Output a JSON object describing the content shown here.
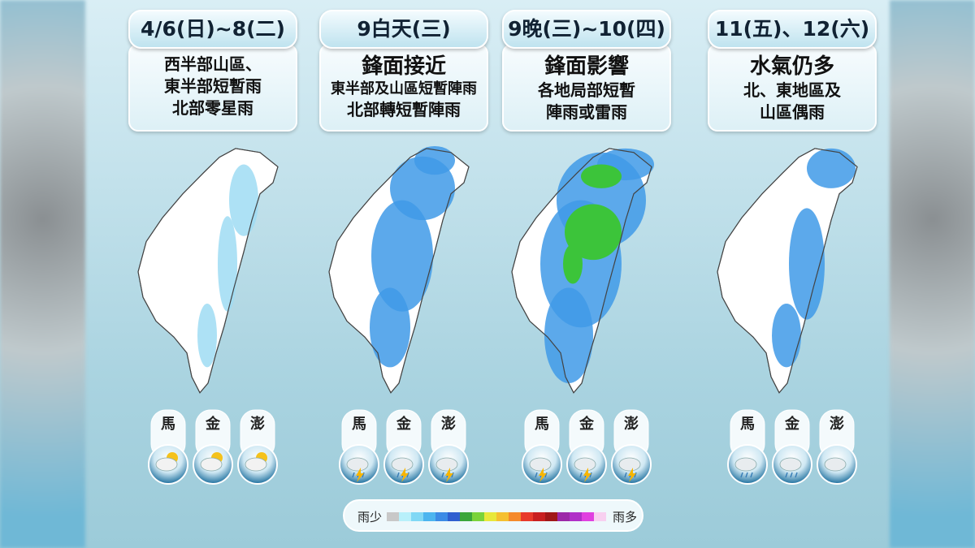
{
  "panels": [
    {
      "date": "4/6(日)~8(二)",
      "lines": [
        "西半部山區、",
        "東半部短暫雨",
        "北部零星雨"
      ],
      "islands": [
        "馬",
        "金",
        "澎"
      ]
    },
    {
      "date": "9白天(三)",
      "headline": "鋒面接近",
      "lines": [
        "東半部及山區短暫陣雨",
        "北部轉短暫陣雨"
      ],
      "islands": [
        "馬",
        "金",
        "澎"
      ]
    },
    {
      "date": "9晚(三)~10(四)",
      "headline": "鋒面影響",
      "lines": [
        "各地局部短暫",
        "陣雨或雷雨"
      ],
      "islands": [
        "馬",
        "金",
        "澎"
      ]
    },
    {
      "date": "11(五)、12(六)",
      "headline": "水氣仍多",
      "lines": [
        "北、東地區及",
        "山區偶雨"
      ],
      "islands": [
        "馬",
        "金",
        "澎"
      ]
    }
  ],
  "legend": {
    "low": "雨少",
    "high": "雨多"
  }
}
